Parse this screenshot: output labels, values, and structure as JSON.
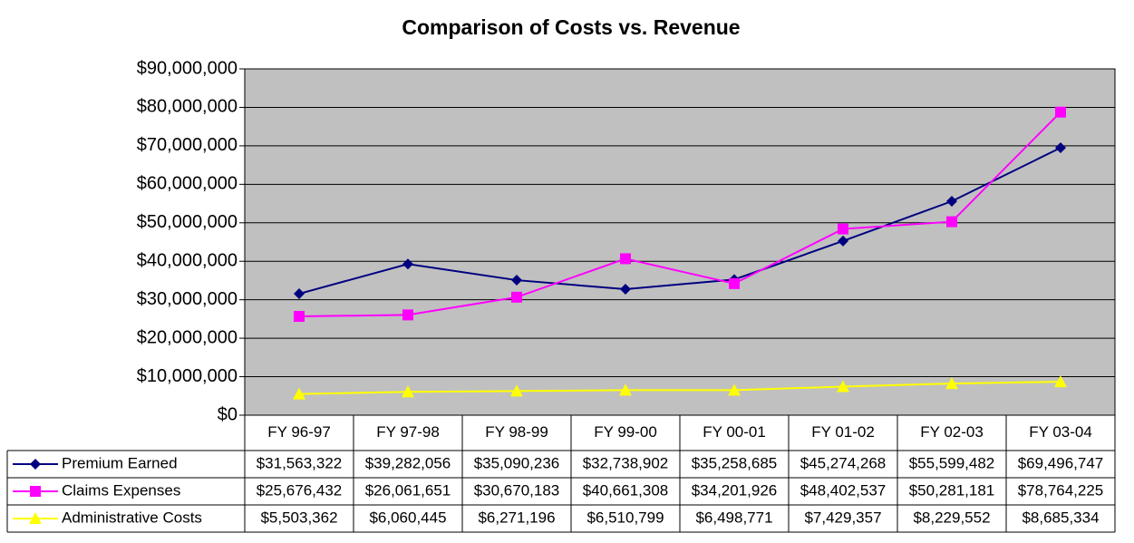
{
  "chart_data": {
    "type": "line",
    "title": "Comparison of Costs vs. Revenue",
    "categories": [
      "FY 96-97",
      "FY 97-98",
      "FY 98-99",
      "FY 99-00",
      "FY 00-01",
      "FY 01-02",
      "FY 02-03",
      "FY 03-04"
    ],
    "series": [
      {
        "name": "Premium Earned",
        "color": "#000080",
        "marker": "diamond",
        "values": [
          31563322,
          39282056,
          35090236,
          32738902,
          35258685,
          45274268,
          55599482,
          69496747
        ],
        "value_labels": [
          "$31,563,322",
          "$39,282,056",
          "$35,090,236",
          "$32,738,902",
          "$35,258,685",
          "$45,274,268",
          "$55,599,482",
          "$69,496,747"
        ]
      },
      {
        "name": "Claims Expenses",
        "color": "#ff00ff",
        "marker": "square",
        "values": [
          25676432,
          26061651,
          30670183,
          40661308,
          34201926,
          48402537,
          50281181,
          78764225
        ],
        "value_labels": [
          "$25,676,432",
          "$26,061,651",
          "$30,670,183",
          "$40,661,308",
          "$34,201,926",
          "$48,402,537",
          "$50,281,181",
          "$78,764,225"
        ]
      },
      {
        "name": "Administrative Costs",
        "color": "#ffff00",
        "marker": "triangle",
        "values": [
          5503362,
          6060445,
          6271196,
          6510799,
          6498771,
          7429357,
          8229552,
          8685334
        ],
        "value_labels": [
          "$5,503,362",
          "$6,060,445",
          "$6,271,196",
          "$6,510,799",
          "$6,498,771",
          "$7,429,357",
          "$8,229,552",
          "$8,685,334"
        ]
      }
    ],
    "ylim": [
      0,
      90000000
    ],
    "yticks": [
      {
        "value": 0,
        "label": "$0"
      },
      {
        "value": 10000000,
        "label": "$10,000,000"
      },
      {
        "value": 20000000,
        "label": "$20,000,000"
      },
      {
        "value": 30000000,
        "label": "$30,000,000"
      },
      {
        "value": 40000000,
        "label": "$40,000,000"
      },
      {
        "value": 50000000,
        "label": "$50,000,000"
      },
      {
        "value": 60000000,
        "label": "$60,000,000"
      },
      {
        "value": 70000000,
        "label": "$70,000,000"
      },
      {
        "value": 80000000,
        "label": "$80,000,000"
      },
      {
        "value": 90000000,
        "label": "$90,000,000"
      }
    ],
    "grid": true,
    "plot_background": "#c0c0c0"
  }
}
